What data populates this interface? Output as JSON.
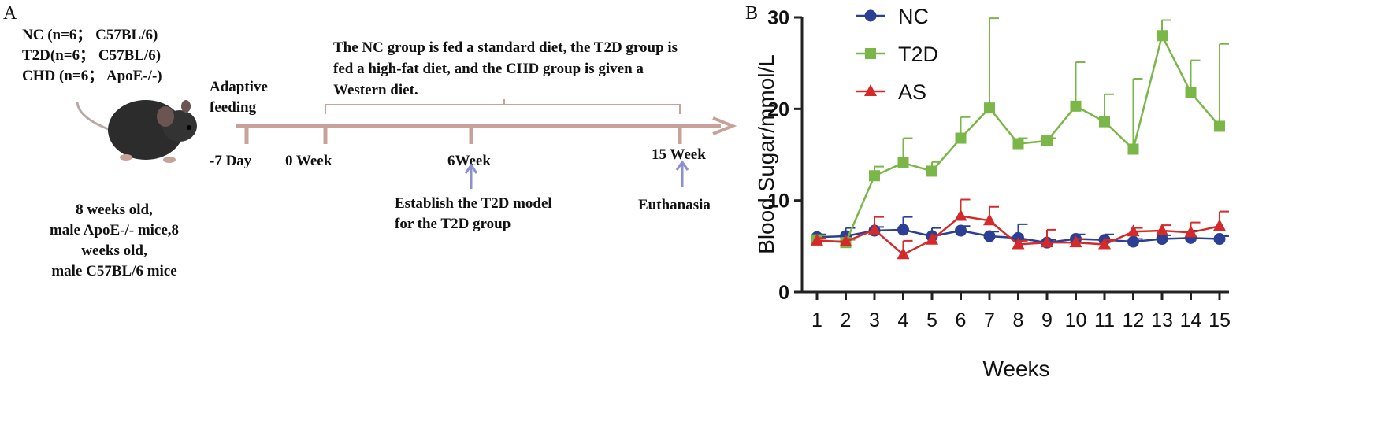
{
  "panel_a": {
    "label": "A",
    "groups": [
      "NC (n=6； C57BL/6)",
      "T2D(n=6； C57BL/6)",
      "CHD (n=6； ApoE-/-)"
    ],
    "mice_note": [
      "8 weeks old,",
      "male  ApoE-/- mice,8",
      "weeks old,",
      "male  C57BL/6 mice"
    ],
    "adaptive": [
      "Adaptive",
      "feeding"
    ],
    "timepoints": [
      "-7 Day",
      "0 Week",
      "6Week",
      "15 Week"
    ],
    "diet_note": [
      "The NC group is fed a standard diet, the T2D group is",
      "fed a high-fat diet, and the CHD group is given a",
      "Western diet."
    ],
    "model_note": [
      "Establish the T2D model",
      "for the T2D group"
    ],
    "end_note": "Euthanasia"
  },
  "chart_data": {
    "type": "line",
    "panel_label": "B",
    "x_label": "Weeks",
    "y_label": "Blood Sugar/mmol/L",
    "categories": [
      "1",
      "2",
      "3",
      "4",
      "5",
      "6",
      "7",
      "8",
      "9",
      "10",
      "11",
      "12",
      "13",
      "14",
      "15"
    ],
    "ylim": [
      0,
      30
    ],
    "yticks": [
      0,
      10,
      20,
      30
    ],
    "legend": "upper left",
    "series": [
      {
        "name": "NC",
        "color": "#2b3f95",
        "marker": "circle",
        "values": [
          6.0,
          6.1,
          6.7,
          6.8,
          6.1,
          6.7,
          6.1,
          5.9,
          5.4,
          5.8,
          5.7,
          5.5,
          5.8,
          5.9,
          5.8
        ],
        "errors": [
          0.3,
          0.9,
          0.4,
          1.4,
          0.9,
          0.5,
          0.5,
          1.5,
          0.3,
          0.5,
          0.6,
          0.3,
          0.4,
          0.8,
          0.3
        ]
      },
      {
        "name": "T2D",
        "color": "#7ab648",
        "marker": "square",
        "values": [
          5.7,
          5.4,
          12.7,
          14.1,
          13.2,
          16.8,
          20.1,
          16.2,
          16.5,
          20.3,
          18.6,
          15.6,
          28.0,
          21.8,
          18.1
        ],
        "errors": [
          0.5,
          0.3,
          1.0,
          2.7,
          1.0,
          2.3,
          9.8,
          0.6,
          0.3,
          4.8,
          3.0,
          7.7,
          1.7,
          3.5,
          9.0
        ]
      },
      {
        "name": "AS",
        "color": "#d42a2a",
        "marker": "triangle",
        "values": [
          5.6,
          5.5,
          6.8,
          4.1,
          5.7,
          8.3,
          7.8,
          5.2,
          5.4,
          5.4,
          5.2,
          6.6,
          6.7,
          6.5,
          7.2
        ],
        "errors": [
          0.3,
          0.3,
          1.4,
          1.5,
          0.5,
          1.8,
          1.5,
          0.4,
          1.4,
          0.4,
          0.5,
          0.4,
          0.6,
          1.1,
          1.6
        ]
      }
    ]
  }
}
